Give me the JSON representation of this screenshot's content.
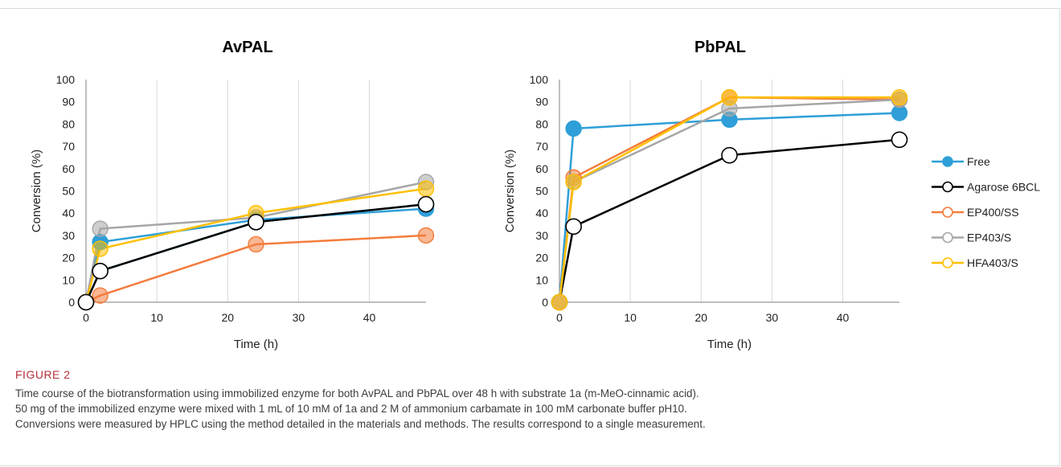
{
  "figure": {
    "label": "FIGURE 2",
    "caption_lines": [
      "Time course of the biotransformation using immobilized enzyme for both AvPAL and PbPAL over 48 h with substrate 1a (m-MeO-cinnamic acid).",
      "50 mg of the immobilized enzyme were mixed with 1 mL of 10 mM of 1a and 2 M of ammonium carbamate in 100 mM carbonate buffer pH10.",
      "Conversions were measured by HPLC using the method detailed in the materials and methods. The results correspond to a single measurement."
    ]
  },
  "legend": [
    {
      "name": "Free",
      "color": "#2e9fd8"
    },
    {
      "name": "Agarose 6BCL",
      "color": "#000000"
    },
    {
      "name": "EP400/SS",
      "color": "#f47c3c"
    },
    {
      "name": "EP403/S",
      "color": "#a6a6a6"
    },
    {
      "name": "HFA403/S",
      "color": "#ffc000"
    }
  ],
  "chart_data": [
    {
      "type": "line",
      "title": "AvPAL",
      "xlabel": "Time (h)",
      "ylabel": "Conversion (%)",
      "xlim": [
        0,
        48
      ],
      "ylim": [
        0,
        100
      ],
      "xticks": [
        0,
        10,
        20,
        30,
        40
      ],
      "yticks": [
        0,
        10,
        20,
        30,
        40,
        50,
        60,
        70,
        80,
        90,
        100
      ],
      "grid": "vertical",
      "x": [
        0,
        2,
        24,
        48
      ],
      "series": [
        {
          "name": "Free",
          "color": "#2e9fd8",
          "values": [
            0,
            27,
            37,
            42
          ]
        },
        {
          "name": "Free",
          "color": "#2e9fd8",
          "values": [
            0,
            14,
            36,
            44
          ]
        },
        {
          "name": "EP400/SS",
          "color": "#f47c3c",
          "values": [
            0,
            3,
            26,
            30
          ]
        },
        {
          "name": "EP403/S",
          "color": "#a6a6a6",
          "values": [
            0,
            33,
            38,
            54
          ]
        },
        {
          "name": "HFA403/S",
          "color": "#ffc000",
          "values": [
            0,
            24,
            40,
            51
          ]
        },
        {
          "name": "Agarose 6BCL",
          "color": "#000000",
          "values": [
            0,
            14,
            36,
            44
          ]
        }
      ]
    },
    {
      "type": "line",
      "title": "PbPAL",
      "xlabel": "Time (h)",
      "ylabel": "Conversion (%)",
      "xlim": [
        0,
        48
      ],
      "ylim": [
        0,
        100
      ],
      "xticks": [
        0,
        10,
        20,
        30,
        40
      ],
      "yticks": [
        0,
        10,
        20,
        30,
        40,
        50,
        60,
        70,
        80,
        90,
        100
      ],
      "grid": "vertical",
      "legend_position": "right",
      "x": [
        0,
        2,
        24,
        48
      ],
      "series": [
        {
          "name": "Free",
          "color": "#2e9fd8",
          "values": [
            0,
            78,
            82,
            85
          ]
        },
        {
          "name": "Agarose 6BCL",
          "color": "#000000",
          "values": [
            0,
            34,
            66,
            73
          ]
        },
        {
          "name": "EP400/SS",
          "color": "#f47c3c",
          "values": [
            0,
            56,
            92,
            91
          ]
        },
        {
          "name": "EP403/S",
          "color": "#a6a6a6",
          "values": [
            0,
            54,
            87,
            91
          ]
        },
        {
          "name": "HFA403/S",
          "color": "#ffc000",
          "values": [
            0,
            54,
            92,
            92
          ]
        }
      ]
    }
  ]
}
